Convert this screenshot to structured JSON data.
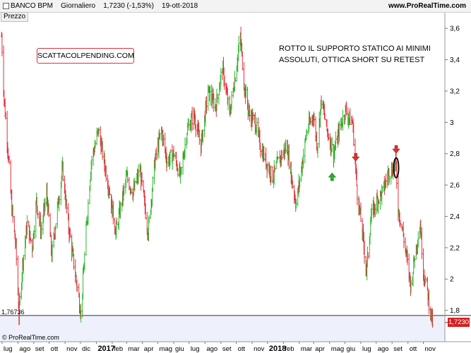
{
  "header": {
    "symbol": "BANCO BPM",
    "period": "Giornaliero",
    "price_info": "1,7230 (-1,53%)",
    "date": "19-ott-2018",
    "site": "www.ProRealTime.com"
  },
  "pane_label": "Prezzo",
  "watermark": "SCATTACOLPENDING.COM",
  "annotation_line1": "ROTTO IL SUPPORTO STATICO AI MINIMI",
  "annotation_line2": "ASSOLUTI, OTTICA SHORT SU RETEST",
  "copyright": "© ProRealTime.com",
  "colors": {
    "up": "#2db82d",
    "down": "#e0303a",
    "support_line": "#333333",
    "price_tag": "#d42020",
    "below_support_fill": "#eef0fb"
  },
  "chart_data": {
    "type": "ohlc",
    "title": "",
    "ylim": [
      1.6,
      3.7
    ],
    "y_ticks": [
      "3,6",
      "3,4",
      "3,2",
      "3",
      "2,8",
      "2,6",
      "2,4",
      "2,2",
      "2",
      "1,8"
    ],
    "x_ticks": [
      "lug",
      "ago",
      "set",
      "ott",
      "nov",
      "dic",
      "2017",
      "feb",
      "mar",
      "apr",
      "mag",
      "giu",
      "lug",
      "ago",
      "set",
      "ott",
      "nov",
      "2018",
      "feb",
      "mar",
      "apr",
      "mag",
      "giu",
      "lug",
      "ago",
      "set",
      "ott",
      "nov"
    ],
    "support_level": 1.76736,
    "support_label": "1,76736",
    "last_price": 1.723,
    "last_price_label": "1,7230",
    "path": [
      [
        "2016-06-30",
        3.55
      ],
      [
        "2016-07-05",
        3.15
      ],
      [
        "2016-07-12",
        2.85
      ],
      [
        "2016-07-20",
        2.45
      ],
      [
        "2016-07-28",
        2.2
      ],
      [
        "2016-08-03",
        1.77
      ],
      [
        "2016-08-10",
        2.1
      ],
      [
        "2016-08-19",
        2.35
      ],
      [
        "2016-08-29",
        2.2
      ],
      [
        "2016-09-06",
        2.5
      ],
      [
        "2016-09-15",
        2.3
      ],
      [
        "2016-09-26",
        2.55
      ],
      [
        "2016-10-06",
        2.15
      ],
      [
        "2016-10-17",
        2.45
      ],
      [
        "2016-10-27",
        2.7
      ],
      [
        "2016-11-07",
        2.35
      ],
      [
        "2016-11-18",
        2.1
      ],
      [
        "2016-11-29",
        1.85
      ],
      [
        "2016-12-02",
        1.78
      ],
      [
        "2016-12-12",
        2.3
      ],
      [
        "2016-12-22",
        2.75
      ],
      [
        "2017-01-05",
        2.95
      ],
      [
        "2017-01-16",
        2.75
      ],
      [
        "2017-01-27",
        2.55
      ],
      [
        "2017-02-08",
        2.3
      ],
      [
        "2017-02-20",
        2.5
      ],
      [
        "2017-03-01",
        2.65
      ],
      [
        "2017-03-14",
        2.55
      ],
      [
        "2017-03-27",
        2.7
      ],
      [
        "2017-04-06",
        2.45
      ],
      [
        "2017-04-12",
        2.3
      ],
      [
        "2017-04-25",
        2.75
      ],
      [
        "2017-05-08",
        2.95
      ],
      [
        "2017-05-19",
        2.75
      ],
      [
        "2017-06-01",
        2.8
      ],
      [
        "2017-06-14",
        2.65
      ],
      [
        "2017-06-27",
        2.95
      ],
      [
        "2017-07-10",
        3.05
      ],
      [
        "2017-07-24",
        2.85
      ],
      [
        "2017-08-07",
        3.2
      ],
      [
        "2017-08-22",
        3.1
      ],
      [
        "2017-09-04",
        3.35
      ],
      [
        "2017-09-18",
        3.05
      ],
      [
        "2017-09-29",
        3.3
      ],
      [
        "2017-10-09",
        3.55
      ],
      [
        "2017-10-16",
        3.25
      ],
      [
        "2017-10-26",
        3.05
      ],
      [
        "2017-11-07",
        3.0
      ],
      [
        "2017-11-17",
        2.85
      ],
      [
        "2017-11-28",
        2.75
      ],
      [
        "2017-12-11",
        2.65
      ],
      [
        "2017-12-22",
        2.75
      ],
      [
        "2018-01-08",
        2.85
      ],
      [
        "2018-01-19",
        2.6
      ],
      [
        "2018-01-26",
        2.48
      ],
      [
        "2018-02-07",
        2.75
      ],
      [
        "2018-02-16",
        2.95
      ],
      [
        "2018-02-28",
        3.05
      ],
      [
        "2018-03-08",
        2.85
      ],
      [
        "2018-03-16",
        3.15
      ],
      [
        "2018-03-27",
        2.95
      ],
      [
        "2018-04-09",
        2.8
      ],
      [
        "2018-04-20",
        2.95
      ],
      [
        "2018-05-02",
        3.08
      ],
      [
        "2018-05-10",
        3.02
      ],
      [
        "2018-05-16",
        3.0
      ],
      [
        "2018-05-25",
        2.55
      ],
      [
        "2018-06-04",
        2.3
      ],
      [
        "2018-06-12",
        2.05
      ],
      [
        "2018-06-21",
        2.4
      ],
      [
        "2018-07-02",
        2.5
      ],
      [
        "2018-07-13",
        2.55
      ],
      [
        "2018-07-25",
        2.68
      ],
      [
        "2018-08-03",
        2.7
      ],
      [
        "2018-08-08",
        2.75
      ],
      [
        "2018-08-13",
        2.45
      ],
      [
        "2018-08-22",
        2.3
      ],
      [
        "2018-08-31",
        2.1
      ],
      [
        "2018-09-07",
        1.95
      ],
      [
        "2018-09-14",
        2.15
      ],
      [
        "2018-09-25",
        2.35
      ],
      [
        "2018-10-01",
        2.05
      ],
      [
        "2018-10-08",
        1.95
      ],
      [
        "2018-10-12",
        1.85
      ],
      [
        "2018-10-19",
        1.72
      ]
    ],
    "signals": [
      {
        "type": "buy-arrow",
        "date": "2018-04-06",
        "price": 2.65
      },
      {
        "type": "sell-arrow",
        "date": "2018-05-22",
        "price": 2.78
      },
      {
        "type": "sell-arrow",
        "date": "2018-08-09",
        "price": 2.83
      }
    ],
    "highlight_ellipse": {
      "date": "2018-08-09",
      "price_low": 2.66,
      "price_high": 2.76
    }
  }
}
